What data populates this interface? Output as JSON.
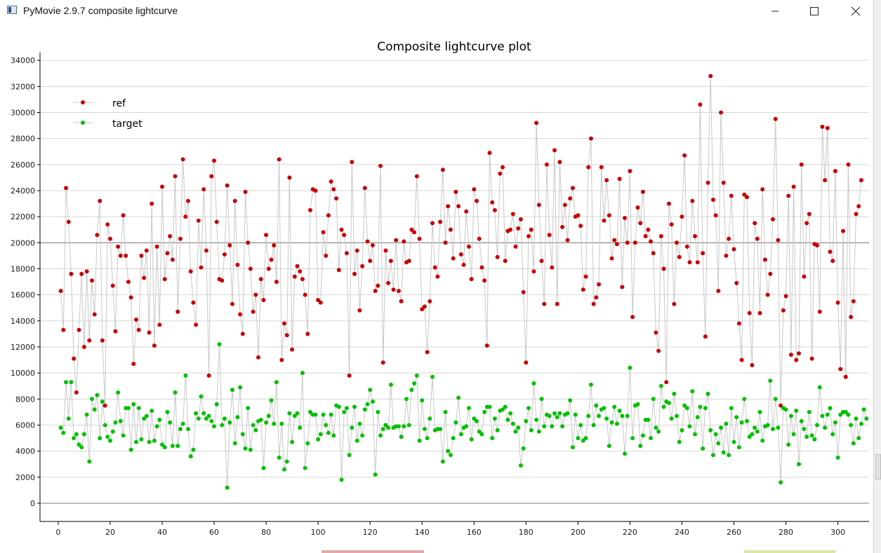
{
  "window": {
    "title": "PyMovie 2.9.7 composite lightcurve",
    "icon": "app-window-icon",
    "controls": [
      "minimize-icon",
      "maximize-icon",
      "close-icon"
    ]
  },
  "chart_data": {
    "type": "scatter",
    "title": "Composite lightcurve plot",
    "xlabel": "",
    "ylabel": "",
    "xlim": [
      -7,
      312
    ],
    "ylim": [
      -1400,
      34600
    ],
    "x_ticks": [
      0,
      20,
      40,
      60,
      80,
      100,
      120,
      140,
      160,
      180,
      200,
      220,
      240,
      260,
      280,
      300
    ],
    "y_ticks": [
      0,
      2000,
      4000,
      6000,
      8000,
      10000,
      12000,
      14000,
      16000,
      18000,
      20000,
      22000,
      24000,
      26000,
      28000,
      30000,
      32000,
      34000
    ],
    "grid": "horizontal",
    "reference_lines": [
      0,
      20000
    ],
    "legend_position": "top-left",
    "connector_color": "#c8c8c8",
    "series": [
      {
        "name": "ref",
        "color": "#c80000",
        "values": [
          16300,
          13300,
          24200,
          21600,
          17600,
          11100,
          8500,
          13300,
          17600,
          12000,
          17800,
          12500,
          17100,
          14500,
          20600,
          23200,
          12500,
          7500,
          21400,
          20300,
          16700,
          13200,
          19700,
          19000,
          22100,
          19000,
          17000,
          15800,
          10700,
          14100,
          13300,
          19000,
          17300,
          19400,
          13100,
          23000,
          12100,
          19700,
          13700,
          24300,
          17200,
          19200,
          20500,
          18700,
          25100,
          14700,
          20300,
          26400,
          22000,
          23200,
          17800,
          15400,
          13700,
          21700,
          18100,
          24100,
          19400,
          9800,
          25100,
          26300,
          21600,
          17200,
          17100,
          19100,
          24400,
          19800,
          15300,
          23200,
          18300,
          14500,
          13000,
          23900,
          20000,
          18000,
          14700,
          16000,
          11200,
          17200,
          15600,
          20600,
          18000,
          18700,
          19800,
          17000,
          26400,
          11000,
          13800,
          12900,
          25000,
          11800,
          17400,
          18200,
          17800,
          17200,
          16000,
          13000,
          22500,
          24100,
          24000,
          15600,
          15400,
          20800,
          19000,
          22100,
          24700,
          24100,
          23400,
          17900,
          21000,
          20600,
          19200,
          9800,
          26200,
          17600,
          19400,
          14800,
          18200,
          24200,
          20100,
          18600,
          19800,
          16300,
          16700,
          25900,
          10800,
          19400,
          16900,
          18600,
          16400,
          20200,
          16300,
          15500,
          20100,
          18500,
          18600,
          21000,
          20800,
          25100,
          20300,
          14900,
          15100,
          11600,
          15500,
          21500,
          18100,
          17400,
          21600,
          25600,
          20000,
          22800,
          21000,
          18800,
          23900,
          22800,
          19100,
          18300,
          22400,
          19700,
          17200,
          24100,
          23200,
          20300,
          18100,
          17100,
          12100,
          26900,
          23100,
          22500,
          18900,
          25300,
          25800,
          18600,
          20900,
          21000,
          22200,
          19700,
          21100,
          21800,
          16200,
          10800,
          20500,
          21000,
          17800,
          29200,
          22900,
          18600,
          15300,
          26000,
          20600,
          18100,
          27100,
          15300,
          26200,
          21200,
          22900,
          20200,
          23400,
          24200,
          22000,
          22100,
          21300,
          16400,
          17400,
          25800,
          28000,
          15300,
          15800,
          16800,
          25800,
          21700,
          24800,
          22100,
          18800,
          20200,
          19900,
          24900,
          16600,
          21900,
          20000,
          25500,
          14300,
          20000,
          22700,
          21500,
          23900,
          20500,
          21000,
          20100,
          19200,
          13100,
          11700,
          20500,
          18000,
          9300,
          23000,
          21400,
          15300,
          20000,
          18900,
          22000,
          26700,
          19700,
          18500,
          23200,
          20500,
          18500,
          30600,
          19200,
          12800,
          24600,
          32800,
          23300,
          22100,
          16300,
          30000,
          24600,
          19000,
          20300,
          23600,
          19500,
          16900,
          13800,
          11000,
          23700,
          23500,
          14600,
          10600,
          21500,
          20300,
          14600,
          24100,
          18700,
          16000,
          17600,
          21800,
          29500,
          20200,
          7500,
          14800,
          15900,
          23600,
          11400,
          24300,
          11000,
          11500,
          26000,
          17400,
          21500,
          22200,
          11100,
          19900,
          19800,
          14700,
          28900,
          24800,
          28800,
          19300,
          18600,
          25500,
          15400,
          10300,
          20900,
          9700,
          26000,
          14300,
          15500,
          22200,
          22800,
          24800
        ]
      },
      {
        "name": "target",
        "color": "#00c000",
        "values": [
          5800,
          5400,
          9300,
          6500,
          9300,
          5000,
          5300,
          4500,
          4300,
          5300,
          6800,
          3200,
          8000,
          7200,
          8300,
          5000,
          7800,
          6000,
          5100,
          4800,
          5500,
          6200,
          8500,
          6300,
          5200,
          7300,
          7300,
          4100,
          7600,
          4700,
          7300,
          4900,
          6500,
          6700,
          4700,
          7100,
          4800,
          5900,
          6400,
          4500,
          4300,
          7000,
          6200,
          4400,
          8500,
          4400,
          5700,
          6100,
          9800,
          5700,
          3600,
          4100,
          6900,
          6500,
          8200,
          6900,
          6500,
          6700,
          6300,
          5900,
          7600,
          12200,
          6000,
          6500,
          1200,
          6200,
          8700,
          4600,
          6600,
          8900,
          5300,
          4200,
          7300,
          4100,
          6000,
          5600,
          6300,
          6400,
          2700,
          6200,
          6700,
          7900,
          6100,
          9300,
          3500,
          6100,
          2600,
          3200,
          6900,
          4700,
          6700,
          6900,
          5800,
          10000,
          2700,
          4600,
          7000,
          6800,
          6800,
          4900,
          5300,
          6800,
          6000,
          5400,
          6800,
          5200,
          7500,
          7400,
          1800,
          7000,
          7300,
          3700,
          5800,
          7400,
          4800,
          6100,
          5200,
          7200,
          7600,
          8700,
          7800,
          2200,
          7000,
          5200,
          5700,
          6000,
          5800,
          9100,
          5800,
          5900,
          5900,
          5100,
          5900,
          8000,
          6000,
          8700,
          9200,
          9800,
          4800,
          7900,
          5700,
          5000,
          6500,
          9700,
          5600,
          5700,
          5700,
          3200,
          7000,
          4000,
          3700,
          5000,
          6200,
          8100,
          5300,
          5800,
          5900,
          7300,
          4900,
          6500,
          6300,
          5500,
          5300,
          7000,
          7400,
          7400,
          5000,
          6500,
          5600,
          7100,
          7200,
          7400,
          6400,
          6900,
          6100,
          5500,
          5800,
          2900,
          4200,
          6300,
          7300,
          5600,
          9200,
          6400,
          5500,
          8000,
          5900,
          6800,
          6700,
          5900,
          6900,
          6600,
          6900,
          5900,
          6800,
          6900,
          7900,
          4300,
          6800,
          5000,
          6000,
          4800,
          5000,
          6700,
          9100,
          6000,
          7500,
          6700,
          7200,
          7300,
          6500,
          4400,
          6200,
          7400,
          6100,
          7100,
          6700,
          3800,
          6700,
          10400,
          5000,
          7500,
          7600,
          4400,
          5200,
          6400,
          6400,
          5000,
          8000,
          5800,
          5500,
          9000,
          7400,
          7800,
          7700,
          6500,
          8400,
          6700,
          4700,
          5600,
          7500,
          7300,
          5900,
          8600,
          5300,
          6600,
          7400,
          4200,
          7300,
          8400,
          5600,
          3700,
          5300,
          4600,
          5800,
          3900,
          6100,
          3700,
          7300,
          4700,
          6600,
          4300,
          6200,
          8000,
          6300,
          5100,
          5300,
          5800,
          5500,
          7000,
          4800,
          5900,
          6000,
          9400,
          5700,
          8000,
          5800,
          1600,
          7300,
          7200,
          4500,
          6700,
          5300,
          7100,
          3000,
          6300,
          5700,
          5100,
          7000,
          5200,
          4900,
          6000,
          8900,
          6700,
          5800,
          6800,
          7300,
          5300,
          6200,
          3500,
          6800,
          7000,
          7000,
          6800,
          6000,
          4600,
          6500,
          5000,
          6100,
          7200,
          6500
        ]
      }
    ]
  }
}
